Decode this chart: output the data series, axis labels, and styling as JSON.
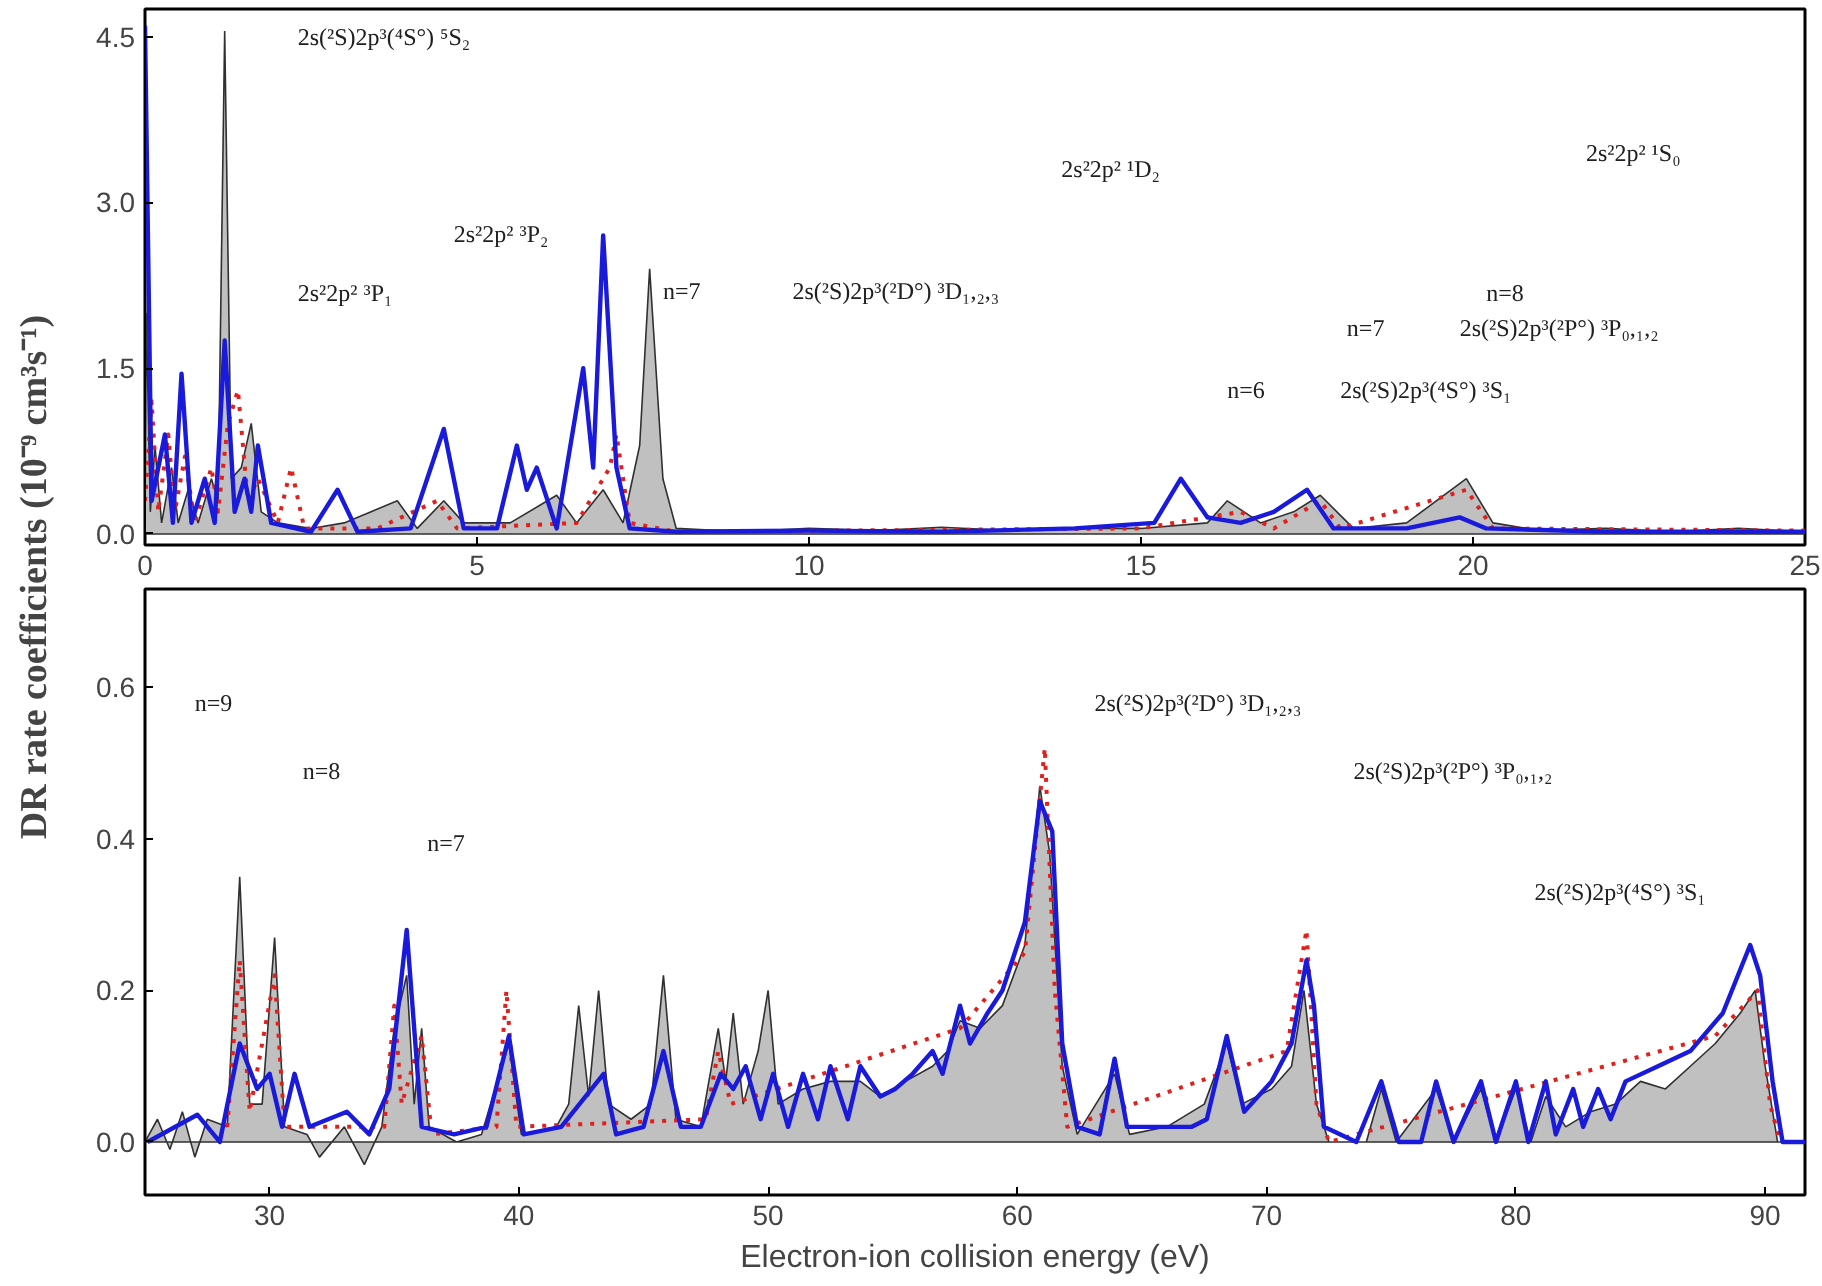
{
  "chart_data": [
    {
      "type": "line",
      "ylabel": "DR rate coefficients (10⁻⁹ cm³s⁻¹)",
      "grid": false,
      "xlim": [
        0,
        25
      ],
      "ylim": [
        -0.1,
        4.75
      ],
      "xticks": [
        0,
        5,
        10,
        15,
        20,
        25
      ],
      "yticks": [
        {
          "value": 0,
          "label": "0.0"
        },
        {
          "value": 1.5,
          "label": "1.5"
        },
        {
          "value": 3,
          "label": "3.0"
        },
        {
          "value": 4.5,
          "label": "4.5"
        }
      ],
      "series": [
        {
          "type": "area",
          "color": "#c0c0c0",
          "x": [
            0,
            0.02,
            0.08,
            0.15,
            0.25,
            0.4,
            0.5,
            0.65,
            0.8,
            1.0,
            1.1,
            1.2,
            1.3,
            1.45,
            1.6,
            1.75,
            2.0,
            2.5,
            3.0,
            3.8,
            4.1,
            4.5,
            4.8,
            5.5,
            6.2,
            6.5,
            6.9,
            7.2,
            7.45,
            7.6,
            7.8,
            8.0,
            9.0,
            10,
            11,
            12,
            13,
            14,
            15,
            16,
            16.3,
            16.8,
            17.3,
            17.7,
            18.2,
            19,
            19.9,
            20.3,
            21,
            22,
            23,
            24,
            25
          ],
          "values": [
            0,
            2.0,
            0.2,
            0.8,
            0.1,
            0.6,
            0.1,
            0.4,
            0.1,
            0.5,
            0.3,
            4.55,
            0.5,
            0.6,
            1.0,
            0.2,
            0.1,
            0.05,
            0.1,
            0.3,
            0.05,
            0.3,
            0.1,
            0.1,
            0.35,
            0.1,
            0.4,
            0.1,
            0.8,
            2.4,
            0.5,
            0.05,
            0.02,
            0.05,
            0.03,
            0.06,
            0.03,
            0.05,
            0.05,
            0.1,
            0.3,
            0.1,
            0.2,
            0.35,
            0.05,
            0.1,
            0.5,
            0.1,
            0.03,
            0.05,
            0.02,
            0.05,
            0.02
          ]
        },
        {
          "type": "line",
          "color": "#e0201c",
          "line_style": "dotted",
          "x": [
            0,
            0.1,
            0.2,
            0.35,
            0.45,
            0.6,
            0.75,
            1.0,
            1.1,
            1.25,
            1.4,
            1.55,
            1.7,
            2.0,
            2.2,
            2.4,
            3.5,
            4.4,
            4.7,
            6.5,
            7.0,
            7.1,
            7.3,
            8,
            15,
            16.5,
            17,
            17.7,
            18,
            19.9,
            20.3,
            25
          ],
          "values": [
            0.3,
            1.2,
            0.2,
            0.9,
            0.2,
            0.7,
            0.1,
            0.6,
            0.2,
            1.0,
            1.3,
            0.3,
            0.5,
            0.1,
            0.6,
            0.05,
            0.05,
            0.3,
            0.05,
            0.1,
            0.6,
            0.9,
            0.1,
            0.02,
            0.05,
            0.2,
            0.05,
            0.3,
            0.05,
            0.4,
            0.05,
            0.03
          ]
        },
        {
          "type": "line",
          "color": "#1a1adc",
          "x": [
            0,
            0.1,
            0.3,
            0.42,
            0.55,
            0.7,
            0.9,
            1.05,
            1.2,
            1.35,
            1.5,
            1.6,
            1.7,
            1.9,
            2.5,
            2.9,
            3.2,
            4.0,
            4.5,
            4.8,
            5.3,
            5.6,
            5.75,
            5.9,
            6.2,
            6.6,
            6.75,
            6.9,
            7.1,
            7.3,
            8,
            10,
            12,
            14,
            15.2,
            15.6,
            16,
            16.5,
            17,
            17.5,
            17.9,
            19,
            19.8,
            20.2,
            22,
            25
          ],
          "values": [
            4.6,
            0.3,
            0.9,
            0.1,
            1.45,
            0.1,
            0.5,
            0.1,
            1.75,
            0.2,
            0.5,
            0.2,
            0.8,
            0.1,
            0.02,
            0.4,
            0.02,
            0.05,
            0.95,
            0.05,
            0.05,
            0.8,
            0.4,
            0.6,
            0.05,
            1.5,
            0.6,
            2.7,
            0.6,
            0.05,
            0.02,
            0.03,
            0.02,
            0.05,
            0.1,
            0.5,
            0.15,
            0.1,
            0.2,
            0.4,
            0.05,
            0.05,
            0.15,
            0.05,
            0.02,
            0.02
          ]
        }
      ],
      "annotations": [
        "2s(²S)2p³(⁴S°) ⁵S₂",
        "2s²2p² ¹S₀",
        "2s²2p² ¹D₂",
        "2s²2p² ³P₂",
        "2s²2p² ³P₁",
        "n=7",
        "2s(²S)2p³(²D°) ³D₁,₂,₃",
        "n=8",
        "n=7",
        "2s(²S)2p³(²P°) ³P₀,₁,₂",
        "n=6",
        "2s(²S)2p³(⁴S°) ³S₁"
      ]
    },
    {
      "type": "line",
      "xlabel": "Electron-ion collision energy (eV)",
      "grid": false,
      "xlim": [
        25,
        91.6
      ],
      "ylim": [
        -0.07,
        0.73
      ],
      "xticks": [
        30,
        40,
        50,
        60,
        70,
        80,
        90
      ],
      "yticks": [
        {
          "value": 0,
          "label": "0.0"
        },
        {
          "value": 0.2,
          "label": "0.2"
        },
        {
          "value": 0.4,
          "label": "0.4"
        },
        {
          "value": 0.6,
          "label": "0.6"
        }
      ],
      "series": [
        {
          "type": "area",
          "color": "#c0c0c0",
          "x": [
            25,
            25.5,
            26,
            26.5,
            27,
            27.5,
            28.3,
            28.8,
            29.2,
            29.7,
            30.2,
            30.6,
            31.5,
            32,
            33,
            33.8,
            34.5,
            35.0,
            35.5,
            35.8,
            36.1,
            36.4,
            37.5,
            38.5,
            39.6,
            40.1,
            41.5,
            42.0,
            42.4,
            42.8,
            43.2,
            43.6,
            44.5,
            45.3,
            45.8,
            46.3,
            47.3,
            48.0,
            48.3,
            48.6,
            49.0,
            49.6,
            50.0,
            50.4,
            51.4,
            52.5,
            53.7,
            54.5,
            55.5,
            56.6,
            57.2,
            57.7,
            58.5,
            59.4,
            60.3,
            60.9,
            61.3,
            61.8,
            62.4,
            63.9,
            64.5,
            66,
            67.5,
            68.4,
            69,
            70.2,
            71.0,
            71.5,
            72,
            72.5,
            74,
            74.6,
            75.2,
            76.8,
            77.5,
            78.6,
            79.2,
            80,
            80.6,
            81.2,
            82,
            83,
            84,
            85,
            86,
            87,
            88,
            89,
            89.6,
            90.0,
            90.5,
            91.6
          ],
          "values": [
            0,
            0.03,
            -0.01,
            0.04,
            -0.02,
            0.03,
            0.02,
            0.35,
            0.05,
            0.05,
            0.27,
            0.02,
            0.01,
            -0.02,
            0.02,
            -0.03,
            0.02,
            0.15,
            0.22,
            0.05,
            0.15,
            0.02,
            0.0,
            0.01,
            0.13,
            0.01,
            0.02,
            0.05,
            0.18,
            0.06,
            0.2,
            0.05,
            0.03,
            0.05,
            0.22,
            0.03,
            0.02,
            0.15,
            0.08,
            0.17,
            0.05,
            0.12,
            0.2,
            0.05,
            0.07,
            0.08,
            0.08,
            0.06,
            0.08,
            0.1,
            0.12,
            0.16,
            0.15,
            0.18,
            0.26,
            0.47,
            0.38,
            0.1,
            0.01,
            0.09,
            0.01,
            0.02,
            0.05,
            0.13,
            0.05,
            0.07,
            0.1,
            0.2,
            0.05,
            0.0,
            0.0,
            0.07,
            0.0,
            0.07,
            0.0,
            0.07,
            0.0,
            0.07,
            0.0,
            0.06,
            0.02,
            0.04,
            0.05,
            0.08,
            0.07,
            0.1,
            0.13,
            0.17,
            0.2,
            0.1,
            0.0,
            0.0
          ]
        },
        {
          "type": "line",
          "color": "#e0201c",
          "line_style": "dotted",
          "x": [
            28.3,
            28.8,
            29.2,
            30.2,
            30.6,
            34.6,
            35.0,
            35.3,
            36.1,
            36.5,
            39.1,
            39.5,
            39.9,
            47.5,
            48.0,
            48.5,
            57.7,
            60.3,
            61.1,
            61.5,
            62.0,
            70.8,
            71.6,
            72.0,
            72.5,
            88,
            89.7,
            90.2,
            90.6
          ],
          "values": [
            0.02,
            0.24,
            0.04,
            0.22,
            0.02,
            0.02,
            0.18,
            0.05,
            0.14,
            0.01,
            0.02,
            0.2,
            0.02,
            0.03,
            0.12,
            0.05,
            0.15,
            0.25,
            0.52,
            0.2,
            0.02,
            0.12,
            0.28,
            0.05,
            0.0,
            0.14,
            0.2,
            0.05,
            0.0
          ]
        },
        {
          "type": "line",
          "color": "#1a1adc",
          "x": [
            25.1,
            27.1,
            28.0,
            28.8,
            29.5,
            30.0,
            30.5,
            31.0,
            31.6,
            33.1,
            34.0,
            34.8,
            35.5,
            36.1,
            37.4,
            38.7,
            39.6,
            40.2,
            41.7,
            43.4,
            43.9,
            45.0,
            45.8,
            46.5,
            47.3,
            48.1,
            48.6,
            49.1,
            49.7,
            50.2,
            50.8,
            51.4,
            52.0,
            52.5,
            53.2,
            53.7,
            54.5,
            55.1,
            55.8,
            56.6,
            57.0,
            57.7,
            58.1,
            58.8,
            59.4,
            60.3,
            60.9,
            61.4,
            61.8,
            62.4,
            63.3,
            63.9,
            64.4,
            65.5,
            67.0,
            67.6,
            68.4,
            69.1,
            70.2,
            71.0,
            71.6,
            71.9,
            72.3,
            73.6,
            74.6,
            75.3,
            76.2,
            76.8,
            77.5,
            78.6,
            79.2,
            80.0,
            80.5,
            81.2,
            81.6,
            82.3,
            82.7,
            83.3,
            83.8,
            84.4,
            85.7,
            87.0,
            88.3,
            89.4,
            89.8,
            90.3,
            90.7,
            91.6
          ],
          "values": [
            0,
            0.036,
            0,
            0.13,
            0.07,
            0.09,
            0.02,
            0.09,
            0.02,
            0.04,
            0.01,
            0.07,
            0.28,
            0.02,
            0.01,
            0.02,
            0.14,
            0.01,
            0.02,
            0.09,
            0.01,
            0.02,
            0.12,
            0.02,
            0.02,
            0.09,
            0.07,
            0.1,
            0.03,
            0.09,
            0.02,
            0.09,
            0.03,
            0.1,
            0.03,
            0.1,
            0.06,
            0.07,
            0.09,
            0.12,
            0.09,
            0.18,
            0.13,
            0.17,
            0.2,
            0.29,
            0.45,
            0.41,
            0.13,
            0.02,
            0.01,
            0.11,
            0.02,
            0.02,
            0.02,
            0.03,
            0.14,
            0.04,
            0.08,
            0.13,
            0.24,
            0.18,
            0.02,
            0,
            0.08,
            0,
            0,
            0.08,
            0,
            0.08,
            0,
            0.08,
            0,
            0.08,
            0.01,
            0.07,
            0.02,
            0.07,
            0.03,
            0.08,
            0.1,
            0.12,
            0.17,
            0.26,
            0.22,
            0.08,
            0,
            0
          ]
        }
      ],
      "annotations": [
        "n=9",
        "2s(²S)2p³(²D°) ³D₁,₂,₃",
        "n=8",
        "2s(²S)2p³(²P°) ³P₀,₁,₂",
        "n=7",
        "2s(²S)2p³(⁴S°) ³S₁"
      ]
    }
  ]
}
